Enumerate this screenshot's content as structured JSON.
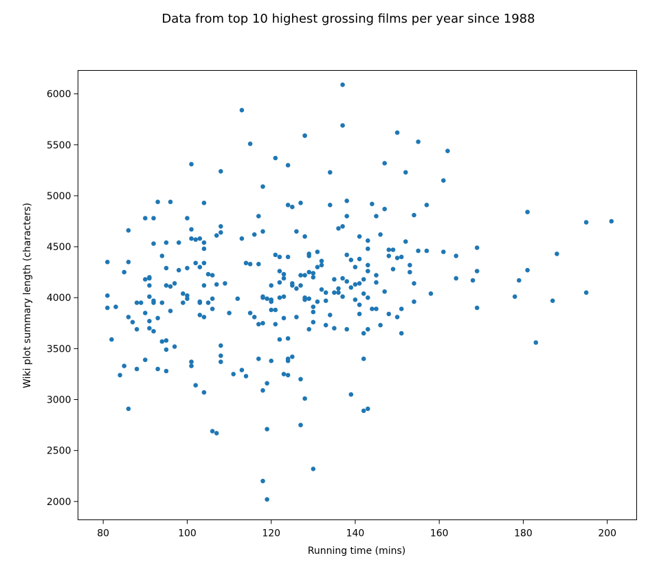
{
  "chart_data": {
    "type": "scatter",
    "title": "Data from top 10 highest grossing films per year since 1988",
    "xlabel": "Running time (mins)",
    "ylabel": "Wiki plot summary length (characters)",
    "xlim": [
      74,
      207
    ],
    "ylim": [
      1820,
      6230
    ],
    "xticks": [
      80,
      100,
      120,
      140,
      160,
      180,
      200
    ],
    "yticks": [
      2000,
      2500,
      3000,
      3500,
      4000,
      4500,
      5000,
      5500,
      6000
    ],
    "grid": false,
    "color": "#1f77b4",
    "series": [
      {
        "x": [
          81,
          81,
          81,
          82,
          83,
          84,
          85,
          85,
          86,
          86,
          86,
          86,
          87,
          88,
          88,
          88,
          89,
          90,
          90,
          90,
          90,
          91,
          91,
          91,
          91,
          91,
          91,
          92,
          92,
          92,
          92,
          92,
          93,
          93,
          93,
          94,
          94,
          94,
          95,
          95,
          95,
          95,
          95,
          95,
          96,
          96,
          96,
          97,
          97,
          98,
          98,
          99,
          99,
          100,
          100,
          100,
          100,
          101,
          101,
          101,
          101,
          101,
          102,
          102,
          102,
          103,
          103,
          103,
          103,
          103,
          104,
          104,
          104,
          104,
          104,
          104,
          104,
          105,
          105,
          106,
          106,
          106,
          106,
          107,
          107,
          107,
          108,
          108,
          108,
          108,
          108,
          108,
          109,
          110,
          111,
          112,
          113,
          113,
          113,
          114,
          114,
          115,
          115,
          115,
          116,
          116,
          117,
          117,
          117,
          117,
          118,
          118,
          118,
          118,
          118,
          118,
          118,
          119,
          119,
          119,
          119,
          120,
          120,
          120,
          120,
          120,
          121,
          121,
          121,
          121,
          122,
          122,
          122,
          122,
          122,
          123,
          123,
          123,
          123,
          123,
          124,
          124,
          124,
          124,
          124,
          124,
          124,
          125,
          125,
          125,
          125,
          126,
          126,
          126,
          127,
          127,
          127,
          127,
          127,
          128,
          128,
          128,
          128,
          128,
          128,
          128,
          129,
          129,
          129,
          129,
          129,
          130,
          130,
          130,
          130,
          130,
          130,
          131,
          131,
          131,
          132,
          132,
          132,
          133,
          133,
          133,
          134,
          134,
          134,
          135,
          135,
          135,
          136,
          136,
          136,
          137,
          137,
          137,
          137,
          137,
          138,
          138,
          138,
          138,
          138,
          139,
          139,
          139,
          140,
          140,
          140,
          141,
          141,
          141,
          141,
          141,
          142,
          142,
          142,
          142,
          142,
          143,
          143,
          143,
          143,
          143,
          143,
          143,
          144,
          144,
          145,
          145,
          145,
          145,
          146,
          146,
          147,
          147,
          147,
          148,
          148,
          148,
          149,
          149,
          150,
          150,
          150,
          151,
          151,
          151,
          152,
          152,
          153,
          153,
          154,
          154,
          154,
          155,
          155,
          157,
          157,
          158,
          161,
          161,
          162,
          164,
          164,
          168,
          169,
          169,
          169,
          178,
          179,
          181,
          181,
          183,
          187,
          188,
          195,
          195,
          201
        ],
        "y": [
          4350,
          4020,
          3900,
          3590,
          3910,
          3240,
          3330,
          4250,
          3810,
          4660,
          4350,
          2910,
          3760,
          3950,
          3690,
          3300,
          3950,
          4780,
          3390,
          4180,
          3850,
          4200,
          4120,
          3770,
          3700,
          4010,
          4190,
          4780,
          4530,
          3970,
          3950,
          3670,
          4940,
          3800,
          3300,
          4410,
          3570,
          3950,
          4540,
          3280,
          3580,
          3490,
          4120,
          4290,
          4940,
          3870,
          4110,
          4140,
          3520,
          4270,
          4540,
          3950,
          4040,
          4780,
          4290,
          4020,
          3990,
          5310,
          3370,
          3330,
          4670,
          4580,
          4340,
          4570,
          3140,
          4300,
          3960,
          3830,
          3950,
          4580,
          4480,
          4540,
          4930,
          3070,
          4340,
          4120,
          3810,
          4230,
          3950,
          2690,
          4220,
          3990,
          3890,
          2670,
          4130,
          4610,
          5240,
          4700,
          4640,
          3530,
          3430,
          3370,
          4140,
          3850,
          3250,
          3990,
          3290,
          5840,
          4580,
          3230,
          4340,
          5510,
          4330,
          3850,
          4620,
          3810,
          4800,
          4330,
          3740,
          3400,
          3090,
          4650,
          4000,
          4010,
          3750,
          5090,
          2200,
          2020,
          3990,
          3160,
          2710,
          3960,
          3980,
          3880,
          3380,
          4120,
          3740,
          3880,
          4420,
          5370,
          4400,
          4150,
          3590,
          4000,
          4260,
          3250,
          4230,
          4010,
          4190,
          3800,
          5300,
          4910,
          4400,
          3380,
          3400,
          3240,
          3600,
          4890,
          4120,
          3420,
          4140,
          4650,
          4090,
          3810,
          4930,
          4120,
          4220,
          3200,
          2750,
          5590,
          5590,
          4600,
          4000,
          3980,
          3010,
          4220,
          4430,
          4410,
          3690,
          4250,
          3990,
          4200,
          3860,
          3760,
          4240,
          3910,
          2320,
          4450,
          3960,
          4300,
          4360,
          4080,
          4320,
          3730,
          4050,
          3970,
          4910,
          3830,
          5230,
          3700,
          4180,
          4050,
          4050,
          4680,
          4090,
          6090,
          5690,
          4700,
          4190,
          4010,
          4420,
          4800,
          4160,
          4950,
          3690,
          4370,
          4100,
          3050,
          3980,
          4130,
          4300,
          3930,
          3840,
          4140,
          4380,
          4600,
          3650,
          3400,
          4180,
          4040,
          2890,
          3690,
          4260,
          4320,
          4560,
          4000,
          4480,
          2910,
          3890,
          4920,
          4800,
          4220,
          4150,
          3890,
          3730,
          4620,
          5320,
          4870,
          4060,
          3840,
          4410,
          4470,
          4280,
          4470,
          4390,
          5620,
          3810,
          3890,
          3650,
          4400,
          4550,
          5230,
          4250,
          4320,
          4140,
          4810,
          3960,
          5530,
          4460,
          4460,
          4910,
          4040,
          5150,
          4450,
          5440,
          4190,
          4410,
          4170,
          4490,
          4260,
          3900,
          4010,
          4170,
          4270,
          4840,
          3560,
          3970,
          4430,
          4740,
          4050,
          4750
        ]
      }
    ]
  }
}
